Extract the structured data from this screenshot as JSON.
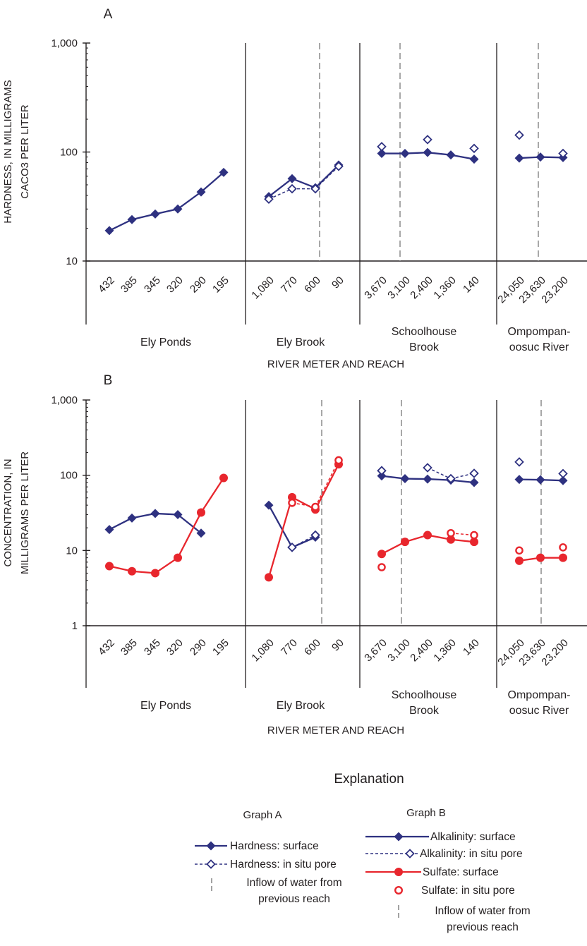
{
  "xlabel": "RIVER METER AND REACH",
  "reaches": [
    {
      "name": [
        "Ely Ponds"
      ],
      "categories": [
        "432",
        "385",
        "345",
        "320",
        "290",
        "195"
      ],
      "inflow_after": null
    },
    {
      "name": [
        "Ely Brook"
      ],
      "categories": [
        "1,080",
        "770",
        "600",
        "90"
      ],
      "inflow_after": 2
    },
    {
      "name": [
        "Schoolhouse",
        "Brook"
      ],
      "categories": [
        "3,670",
        "3,100",
        "2,400",
        "1,360",
        "140"
      ],
      "inflow_after": 0
    },
    {
      "name": [
        "Ompompan-",
        "oosuc River"
      ],
      "categories": [
        "24,050",
        "23,630",
        "23,200"
      ],
      "inflow_after": 0
    }
  ],
  "chart_data": [
    {
      "panel": "A",
      "type": "line",
      "ylabel": [
        "HARDNESS, IN MILLIGRAMS",
        "CACO3 PER LITER"
      ],
      "yscale": "log",
      "ylim": [
        10,
        1000
      ],
      "yticks": [
        "10",
        "100",
        "1,000"
      ],
      "series": [
        {
          "name": "Hardness: surface",
          "style": "solid-filled-diamond",
          "color": "#2e3180",
          "values": [
            [
              19,
              24,
              27,
              30,
              43,
              65
            ],
            [
              39,
              57,
              47,
              76
            ],
            [
              97,
              97,
              99,
              94,
              86
            ],
            [
              88,
              90,
              89
            ]
          ]
        },
        {
          "name": "Hardness: in situ pore",
          "style": "dashed-open-diamond",
          "color": "#2e3180",
          "values": [
            [
              null,
              null,
              null,
              null,
              null,
              null
            ],
            [
              37,
              46,
              46,
              74
            ],
            [
              112,
              null,
              130,
              null,
              108
            ],
            [
              143,
              null,
              97
            ]
          ]
        }
      ]
    },
    {
      "panel": "B",
      "type": "line",
      "ylabel": [
        "CONCENTRATION, IN",
        "MILLIGRAMS PER LITER"
      ],
      "yscale": "log",
      "ylim": [
        1,
        1000
      ],
      "yticks": [
        "1",
        "10",
        "100",
        "1,000"
      ],
      "series": [
        {
          "name": "Alkalinity: surface",
          "style": "solid-filled-diamond",
          "color": "#2e3180",
          "values": [
            [
              19,
              27,
              31,
              30,
              17,
              null
            ],
            [
              40,
              11,
              15,
              null
            ],
            [
              98,
              90,
              89,
              86,
              80
            ],
            [
              88,
              87,
              85
            ]
          ]
        },
        {
          "name": "Alkalinity: in situ pore",
          "style": "dashed-open-diamond",
          "color": "#2e3180",
          "values": [
            [
              null,
              null,
              null,
              null,
              null,
              null
            ],
            [
              null,
              11,
              16,
              null
            ],
            [
              115,
              null,
              126,
              90,
              106
            ],
            [
              150,
              null,
              105
            ]
          ]
        },
        {
          "name": "Sulfate: surface",
          "style": "solid-filled-circle",
          "color": "#e8262d",
          "values": [
            [
              6.2,
              5.3,
              5.0,
              8.0,
              32,
              92
            ],
            [
              4.4,
              51,
              35,
              140
            ],
            [
              9,
              13,
              16,
              14,
              13
            ],
            [
              7.3,
              8,
              8
            ]
          ]
        },
        {
          "name": "Sulfate: in situ pore",
          "style": "dashed-open-circle",
          "color": "#e8262d",
          "values": [
            [
              null,
              null,
              null,
              null,
              null,
              null
            ],
            [
              null,
              43,
              38,
              158
            ],
            [
              6,
              null,
              null,
              17,
              16
            ],
            [
              10,
              null,
              11
            ]
          ]
        }
      ]
    }
  ],
  "legend": {
    "title": "Explanation",
    "graph_a": {
      "heading": "Graph A",
      "items": [
        "Hardness: surface",
        "Hardness: in situ pore",
        "Inflow of water from",
        "previous reach"
      ]
    },
    "graph_b": {
      "heading": "Graph B",
      "items": [
        "Alkalinity: surface",
        "Alkalinity: in situ pore",
        "Sulfate: surface",
        "Sulfate: in situ pore",
        "Inflow of water from",
        "previous reach"
      ]
    }
  },
  "colors": {
    "blue": "#2e3180",
    "red": "#e8262d",
    "inflow": "#8c8c8c",
    "axis": "#231f20"
  }
}
